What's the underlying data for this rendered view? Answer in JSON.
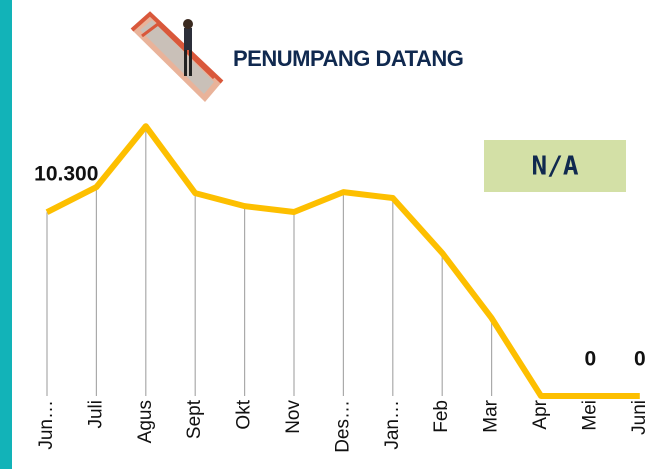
{
  "chart_data": {
    "type": "line",
    "title": "PENUMPANG DATANG",
    "badge": "N/A",
    "categories": [
      "Jun…",
      "Juli",
      "Agus",
      "Sept",
      "Okt",
      "Nov",
      "Des…",
      "Jan…",
      "Feb",
      "Mar",
      "Apr",
      "Mei",
      "Juni"
    ],
    "values": [
      9060,
      10300,
      13300,
      10000,
      9360,
      9070,
      10050,
      9760,
      7050,
      3840,
      0,
      0,
      0
    ],
    "value_labels": [
      null,
      "10.300",
      null,
      null,
      null,
      null,
      null,
      null,
      null,
      null,
      null,
      "0",
      "0"
    ],
    "color": "#fdbf00",
    "ylim": [
      0,
      14000
    ]
  }
}
